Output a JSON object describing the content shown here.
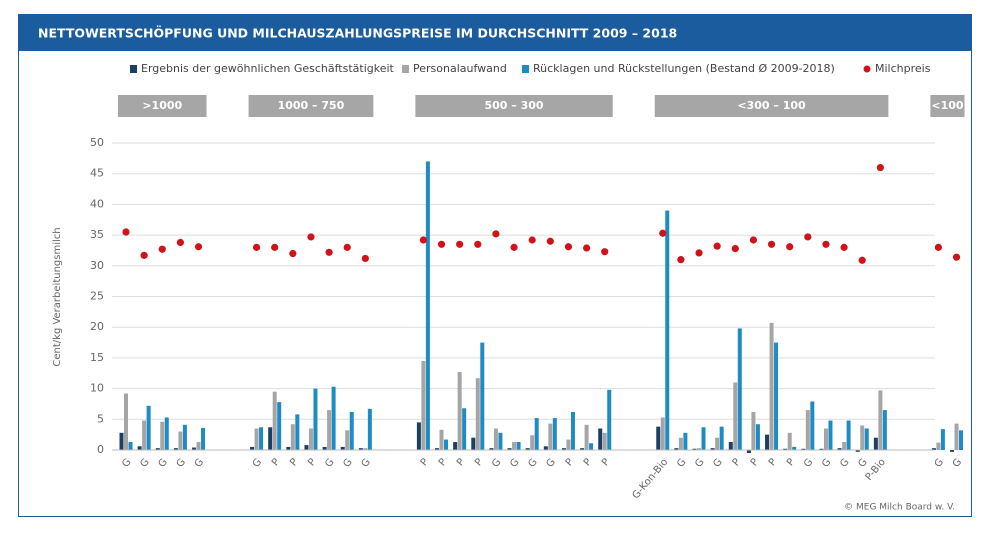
{
  "chart_data": {
    "type": "bar",
    "title": "NETTOWERTSCHÖPFUNG UND MILCHAUSZAHLUNGSPREISE IM DURCHSCHNITT 2009 – 2018",
    "y_label": "Cent/kg Verarbeitungsmilch",
    "source": "© MEG Milch Board w. V.",
    "groups": [
      {
        "label": ">1000",
        "size": 5
      },
      {
        "label": "1000 – 750",
        "size": 7
      },
      {
        "label": "500 – 300",
        "size": 11
      },
      {
        "label": "<300 – 100",
        "size": 13
      },
      {
        "label": "<100",
        "size": 2
      }
    ],
    "categories": [
      "G",
      "G",
      "G",
      "G",
      "G",
      "G",
      "P",
      "P",
      "P",
      "G",
      "G",
      "G",
      "P",
      "P",
      "P",
      "P",
      "G",
      "G",
      "G",
      "G",
      "P",
      "P",
      "P",
      "G-Kon-Bio",
      "G",
      "G",
      "G",
      "P",
      "P",
      "P",
      "P",
      "G",
      "G",
      "G",
      "G",
      "P-Bio",
      "G",
      "G"
    ],
    "ylim": [
      0,
      50
    ],
    "yticks": [
      0,
      5,
      10,
      15,
      20,
      25,
      30,
      35,
      40,
      45,
      50
    ],
    "grid": true,
    "series": [
      {
        "name": "Ergebnis der gewöhnlichen Geschäftstätigkeit",
        "color": "#1c3f63",
        "values": [
          2.8,
          0.6,
          0.3,
          0.3,
          0.4,
          0.5,
          3.7,
          0.5,
          0.8,
          0.5,
          0.5,
          0.3,
          4.5,
          0.3,
          1.3,
          2,
          0.3,
          0.3,
          0.3,
          0.6,
          0.3,
          0.3,
          3.5,
          3.8,
          0.3,
          0.2,
          0.3,
          1.3,
          -0.5,
          2.5,
          0.2,
          0.2,
          0.2,
          0.3,
          -0.3,
          2,
          0.3,
          -0.3
        ]
      },
      {
        "name": "Personalaufwand",
        "color": "#a5a5a5",
        "values": [
          9.2,
          4.8,
          4.6,
          3,
          1.3,
          3.5,
          9.5,
          4.2,
          3.5,
          6.5,
          3.2,
          0.3,
          14.5,
          3.3,
          12.7,
          11.7,
          3.5,
          1.3,
          2.4,
          4.3,
          1.7,
          4.1,
          2.8,
          5.3,
          2,
          0.3,
          2,
          11,
          6.2,
          20.7,
          2.8,
          6.5,
          3.5,
          1.3,
          4,
          9.7,
          1.2,
          4.3
        ]
      },
      {
        "name": "Rücklagen und Rückstellungen (Bestand Ø 2009-2018)",
        "color": "#1f8bc3",
        "values": [
          1.3,
          7.2,
          5.3,
          4.1,
          3.6,
          3.7,
          7.8,
          5.8,
          10,
          10.3,
          6.2,
          6.7,
          47,
          1.7,
          6.8,
          17.5,
          2.8,
          1.3,
          5.2,
          5.2,
          6.2,
          1.1,
          9.8,
          39,
          2.8,
          3.7,
          3.8,
          19.8,
          4.2,
          17.5,
          0.5,
          7.9,
          4.8,
          4.8,
          3.5,
          6.5,
          3.4,
          3.2
        ]
      },
      {
        "name": "Milchpreis",
        "color": "#d0121b",
        "type": "scatter",
        "values": [
          35.5,
          31.7,
          32.7,
          33.8,
          33.1,
          33,
          33,
          32,
          34.7,
          32.2,
          33,
          31.2,
          34.2,
          33.5,
          33.5,
          33.5,
          35.2,
          33,
          34.2,
          34,
          33.1,
          32.9,
          32.3,
          35.3,
          31,
          32.1,
          33.2,
          32.8,
          34.2,
          33.5,
          33.1,
          34.7,
          33.5,
          33,
          30.9,
          46,
          33,
          31.4
        ]
      }
    ]
  }
}
